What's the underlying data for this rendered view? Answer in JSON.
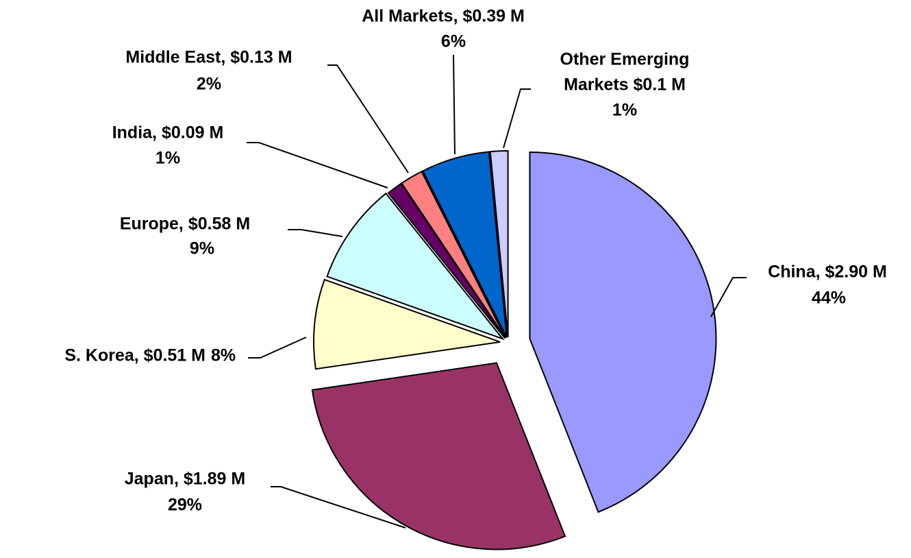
{
  "chart_data": {
    "type": "pie",
    "value_labels": [
      "China, $2.90 M",
      "Japan, $1.89 M",
      "S. Korea, $0.51 M",
      "Europe, $0.58 M",
      "India, $0.09 M",
      "Middle East, $0.13 M",
      "All Markets, $0.39 M",
      [
        "Other  Emerging",
        "Markets $0.1 M"
      ]
    ],
    "values": [
      2.9,
      1.89,
      0.51,
      0.58,
      0.09,
      0.13,
      0.39,
      0.1
    ],
    "percent_labels": [
      "44%",
      "29%",
      "8%",
      "9%",
      "1%",
      "2%",
      "6%",
      "1%"
    ],
    "colors": [
      "#9999ff",
      "#993366",
      "#ffffcc",
      "#ccffff",
      "#660066",
      "#ff8080",
      "#0066cc",
      "#ccccff"
    ]
  }
}
